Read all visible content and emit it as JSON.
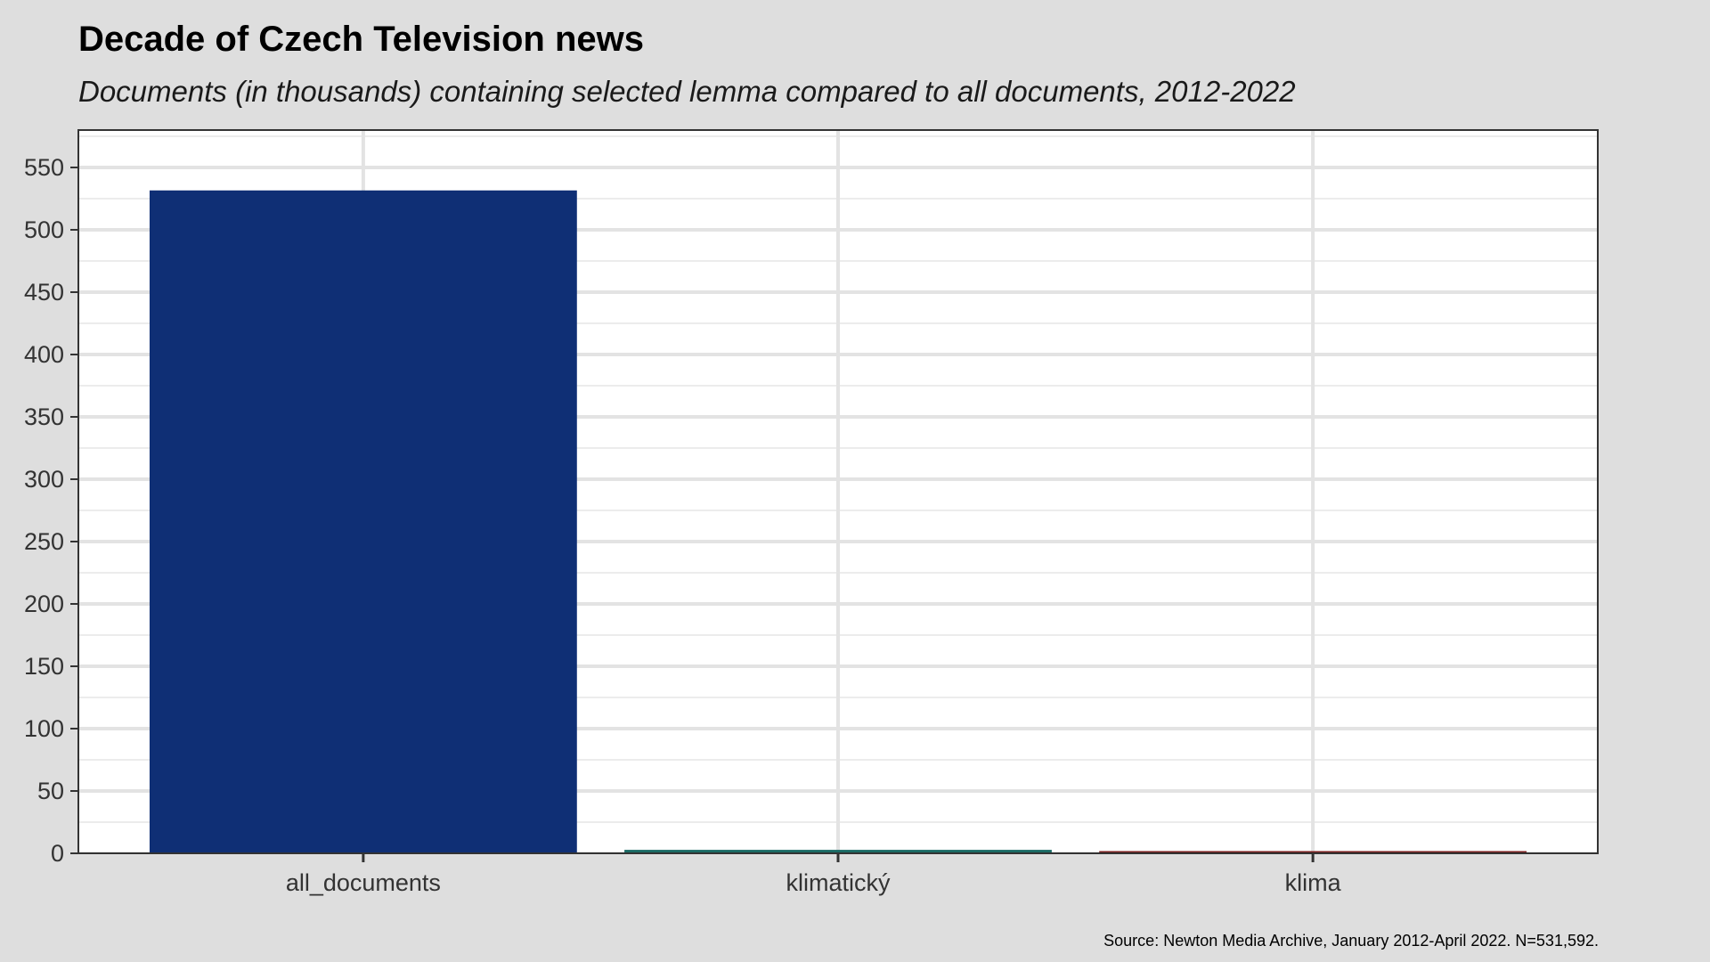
{
  "chart_data": {
    "type": "bar",
    "title": "Decade of Czech Television news",
    "subtitle": "Documents (in thousands) containing selected lemma compared to all documents, 2012-2022",
    "caption": "Source: Newton Media Archive, January 2012-April 2022. N=531,592.",
    "xlabel": "",
    "ylabel": "",
    "categories": [
      "all_documents",
      "klimatický",
      "klima"
    ],
    "values": [
      531.592,
      2.8,
      1.8
    ],
    "colors": [
      "#0f2f75",
      "#1b6b65",
      "#7a1f1f"
    ],
    "ylim": [
      0,
      580
    ],
    "yticks": [
      0,
      50,
      100,
      150,
      200,
      250,
      300,
      350,
      400,
      450,
      500,
      550
    ],
    "grid": true,
    "legend": "none"
  }
}
